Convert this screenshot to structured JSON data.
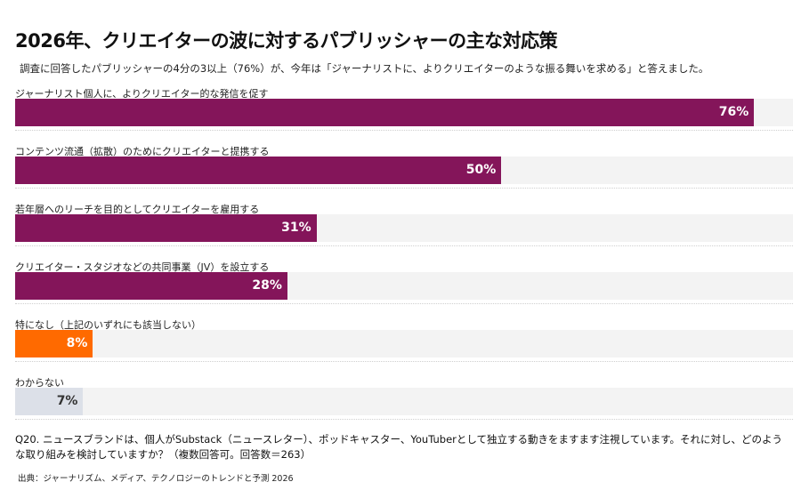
{
  "chart_data": {
    "type": "bar",
    "orientation": "horizontal",
    "title": "2026年、クリエイターの波に対するパブリッシャーの主な対応策",
    "subtitle": "調査に回答したパブリッシャーの4分の3以上（76%）が、今年は「ジャーナリストに、よりクリエイターのような振る舞いを求める」と答えました。",
    "categories": [
      "ジャーナリスト個人に、よりクリエイター的な発信を促す",
      "コンテンツ流通（拡散）のためにクリエイターと提携する",
      "若年層へのリーチを目的としてクリエイターを雇用する",
      "クリエイター・スタジオなどの共同事業（JV）を設立する",
      "特になし（上記のいずれにも該当しない）",
      "わからない"
    ],
    "values": [
      76,
      50,
      31,
      28,
      8,
      7
    ],
    "value_labels": [
      "76%",
      "50%",
      "31%",
      "28%",
      "8%",
      "7%"
    ],
    "unit": "%",
    "xlim": [
      0,
      80
    ],
    "grid": false,
    "legend": "none",
    "bar_colors": [
      "#84155a",
      "#84155a",
      "#84155a",
      "#84155a",
      "#ff6a00",
      "#dce0e8"
    ],
    "label_colors": [
      "#ffffff",
      "#ffffff",
      "#ffffff",
      "#ffffff",
      "#ffffff",
      "#333333"
    ],
    "track_color": "#f3f3f3",
    "note": "Q20. ニュースブランドは、個人がSubstack（ニュースレター）、ポッドキャスター、YouTuberとして独立する動きをますます注視しています。それに対し、どのような取り組みを検討していますか？（複数回答可。回答数＝263）",
    "source": "出典：ジャーナリズム、メディア、テクノロジーのトレンドと予測 2026"
  }
}
